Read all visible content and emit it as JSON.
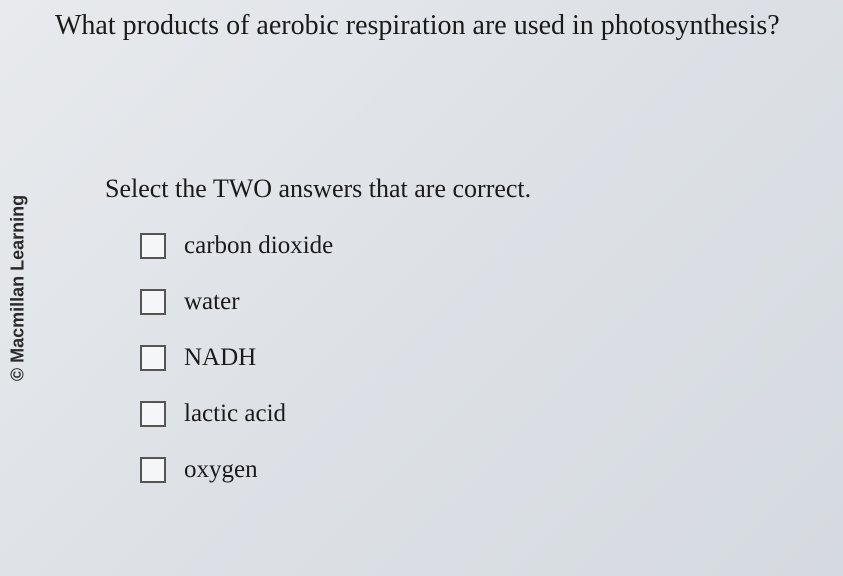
{
  "copyright": "© Macmillan Learning",
  "question": "What products of aerobic respiration are used in photosynthesis?",
  "instruction": "Select the TWO answers that are correct.",
  "options": [
    {
      "label": "carbon dioxide",
      "checked": false
    },
    {
      "label": "water",
      "checked": false
    },
    {
      "label": "NADH",
      "checked": false
    },
    {
      "label": "lactic acid",
      "checked": false
    },
    {
      "label": "oxygen",
      "checked": false
    }
  ],
  "colors": {
    "background_start": "#e8eaed",
    "background_end": "#d5dae0",
    "text": "#1a1a1a",
    "checkbox_border": "#555555",
    "checkbox_bg": "#f5f6f8"
  },
  "typography": {
    "question_fontsize": 28,
    "instruction_fontsize": 26,
    "option_fontsize": 25,
    "copyright_fontsize": 18,
    "body_font": "Georgia, serif",
    "copyright_font": "Arial, sans-serif"
  }
}
